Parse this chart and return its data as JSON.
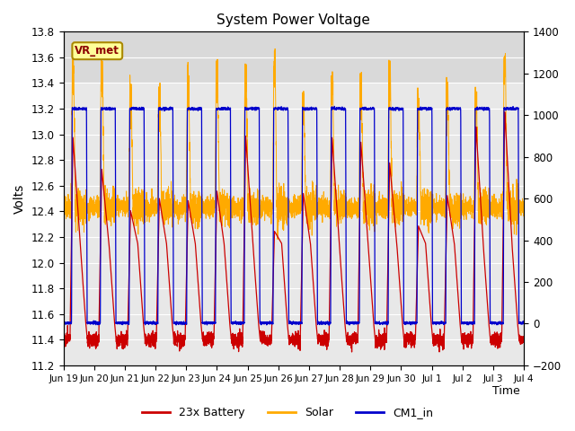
{
  "title": "System Power Voltage",
  "xlabel": "Time",
  "ylabel_left": "Volts",
  "ylim_left": [
    11.2,
    13.8
  ],
  "ylim_right": [
    -200,
    1400
  ],
  "yticks_right": [
    -200,
    0,
    200,
    400,
    600,
    800,
    1000,
    1200,
    1400
  ],
  "xtick_labels": [
    "Jun 19",
    "Jun 20",
    "Jun 21",
    "Jun 22",
    "Jun 23",
    "Jun 24",
    "Jun 25",
    "Jun 26",
    "Jun 27",
    "Jun 28",
    "Jun 29",
    "Jun 30",
    "Jul 1",
    "Jul 2",
    "Jul 3",
    "Jul 4"
  ],
  "color_battery": "#cc0000",
  "color_solar": "#ffaa00",
  "color_cm1": "#0000cc",
  "background_color": "#ffffff",
  "plot_bg_color": "#e8e8e8",
  "legend_labels": [
    "23x Battery",
    "Solar",
    "CM1_in"
  ],
  "vr_met_label": "VR_met",
  "vr_met_box_color": "#ffff99",
  "vr_met_box_border": "#aa8800",
  "grid_color": "#ffffff",
  "n_days": 16
}
